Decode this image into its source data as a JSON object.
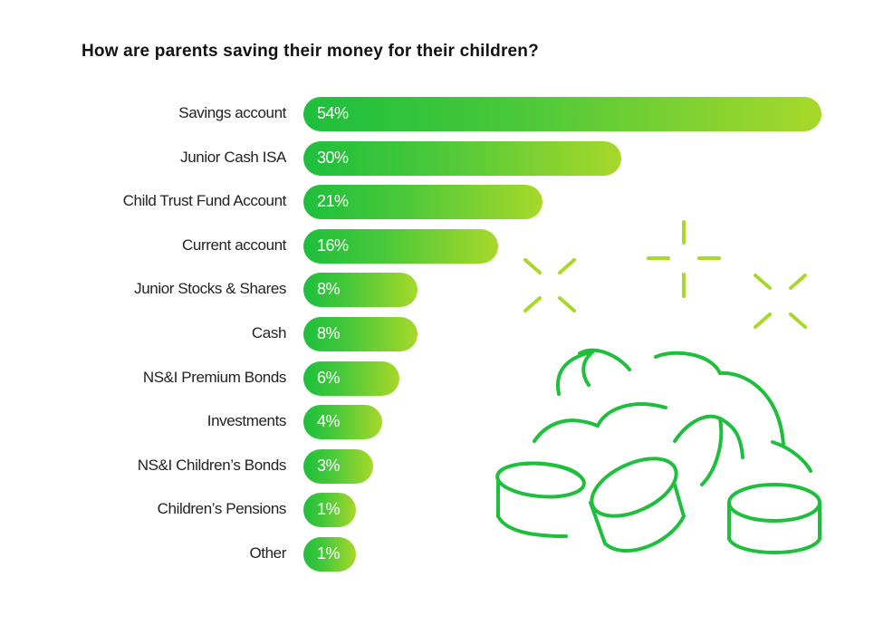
{
  "chart_data": {
    "type": "bar",
    "orientation": "horizontal",
    "title": "How are parents saving their money for their children?",
    "categories": [
      "Savings account",
      "Junior Cash ISA",
      "Child Trust Fund Account",
      "Current account",
      "Junior Stocks & Shares",
      "Cash",
      "NS&I Premium Bonds",
      "Investments",
      "NS&I Children’s Bonds",
      "Children’s Pensions",
      "Other"
    ],
    "values": [
      54,
      30,
      21,
      16,
      8,
      8,
      6,
      4,
      3,
      1,
      1
    ],
    "data_labels": [
      "54%",
      "30%",
      "21%",
      "16%",
      "8%",
      "8%",
      "6%",
      "4%",
      "3%",
      "1%",
      "1%"
    ],
    "unit": "%",
    "grid": false,
    "colors": {
      "bar_start": "#1dbf3c",
      "bar_end": "#a8d82a",
      "illustration": "#1dbf3c",
      "sparkle": "#a8d82a"
    }
  }
}
